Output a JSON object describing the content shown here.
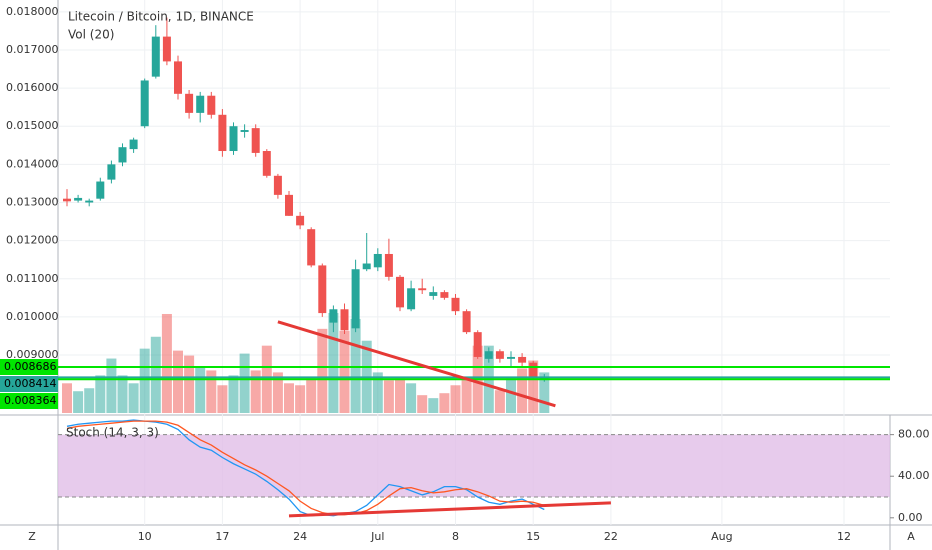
{
  "chart_data": {
    "type": "candlestick",
    "title": "Litecoin / Bitcoin, 1D, BINANCE",
    "volume_title": "Vol (20)",
    "stoch_title": "Stoch (14, 3, 3)",
    "ui": {
      "left_button": "Z",
      "right_button": "A"
    },
    "up_color": "#26a69a",
    "down_color": "#ef5350",
    "categories": [
      null,
      null,
      null,
      null,
      null,
      null,
      null,
      "10",
      null,
      null,
      null,
      null,
      null,
      null,
      "17",
      null,
      null,
      null,
      null,
      null,
      null,
      "24",
      null,
      null,
      null,
      null,
      null,
      null,
      "Jul",
      null,
      null,
      null,
      null,
      null,
      null,
      "8",
      null,
      null,
      null,
      null,
      null,
      null,
      "15",
      null,
      null,
      null,
      null,
      null,
      null,
      "22",
      null,
      null,
      null,
      null,
      null,
      null,
      null,
      null,
      null,
      "Aug",
      null,
      null,
      null,
      null,
      null,
      null,
      null,
      null,
      null,
      null,
      "12",
      null,
      null,
      null,
      null
    ],
    "open": [
      0.0131,
      0.01305,
      0.013,
      0.0131,
      0.0136,
      0.01405,
      0.0144,
      0.015,
      0.0163,
      0.01735,
      0.0167,
      0.01585,
      0.01535,
      0.0158,
      0.0153,
      0.01435,
      0.01485,
      0.01495,
      0.01435,
      0.0137,
      0.0132,
      0.01265,
      0.0123,
      0.01135,
      0.00985,
      0.0102,
      0.0097,
      0.01125,
      0.0113,
      0.01165,
      0.01105,
      0.0102,
      0.01075,
      0.01055,
      0.01065,
      0.0105,
      0.01015,
      0.0096,
      0.0089,
      0.0091,
      0.0089,
      0.00895,
      0.0088,
      0.00838,
      null,
      null,
      null,
      null,
      null,
      null,
      null,
      null,
      null,
      null,
      null,
      null,
      null,
      null,
      null,
      null,
      null,
      null,
      null,
      null,
      null,
      null,
      null,
      null,
      null,
      null,
      null,
      null,
      null,
      null,
      null
    ],
    "high": [
      0.01335,
      0.0132,
      0.0131,
      0.01365,
      0.0141,
      0.01455,
      0.0147,
      0.01625,
      0.01765,
      0.01785,
      0.01685,
      0.01595,
      0.0159,
      0.0159,
      0.01545,
      0.0151,
      0.01505,
      0.01505,
      0.0144,
      0.01375,
      0.0133,
      0.01275,
      0.01235,
      0.0114,
      0.0103,
      0.01035,
      0.0115,
      0.0122,
      0.0118,
      0.01205,
      0.0111,
      0.01095,
      0.011,
      0.0108,
      0.0107,
      0.0106,
      0.0102,
      0.00965,
      0.0092,
      0.00915,
      0.0091,
      0.00905,
      0.00885,
      0.0085,
      null,
      null,
      null,
      null,
      null,
      null,
      null,
      null,
      null,
      null,
      null,
      null,
      null,
      null,
      null,
      null,
      null,
      null,
      null,
      null,
      null,
      null,
      null,
      null,
      null,
      null,
      null,
      null,
      null,
      null,
      null
    ],
    "low": [
      0.0129,
      0.013,
      0.0129,
      0.01305,
      0.0135,
      0.01395,
      0.0143,
      0.01495,
      0.01625,
      0.0166,
      0.0157,
      0.0152,
      0.0151,
      0.0152,
      0.0142,
      0.01425,
      0.0147,
      0.0142,
      0.01365,
      0.0131,
      0.01265,
      0.0123,
      0.0113,
      0.01,
      0.0096,
      0.00955,
      0.0096,
      0.0112,
      0.0112,
      0.01095,
      0.01015,
      0.01015,
      0.0106,
      0.01045,
      0.01045,
      0.01005,
      0.00955,
      0.0089,
      0.0088,
      0.0088,
      0.0087,
      0.0087,
      0.00835,
      0.0083,
      null,
      null,
      null,
      null,
      null,
      null,
      null,
      null,
      null,
      null,
      null,
      null,
      null,
      null,
      null,
      null,
      null,
      null,
      null,
      null,
      null,
      null,
      null,
      null,
      null,
      null,
      null,
      null,
      null,
      null,
      null
    ],
    "close": [
      0.01303,
      0.01312,
      0.01305,
      0.01355,
      0.014,
      0.01445,
      0.01465,
      0.0162,
      0.01735,
      0.0167,
      0.01585,
      0.01535,
      0.0158,
      0.0153,
      0.01435,
      0.015,
      0.0149,
      0.0143,
      0.0137,
      0.0132,
      0.01265,
      0.0124,
      0.01135,
      0.0101,
      0.0102,
      0.00965,
      0.01125,
      0.0114,
      0.01165,
      0.01105,
      0.01025,
      0.01075,
      0.0107,
      0.01065,
      0.0105,
      0.01015,
      0.0096,
      0.00895,
      0.0091,
      0.0089,
      0.00895,
      0.0088,
      0.0084,
      0.008414,
      null,
      null,
      null,
      null,
      null,
      null,
      null,
      null,
      null,
      null,
      null,
      null,
      null,
      null,
      null,
      null,
      null,
      null,
      null,
      null,
      null,
      null,
      null,
      null,
      null,
      null,
      null,
      null,
      null,
      null,
      null
    ],
    "volume": [
      30,
      22,
      25,
      38,
      55,
      38,
      30,
      65,
      77,
      100,
      63,
      58,
      46,
      43,
      28,
      38,
      60,
      43,
      68,
      41,
      30,
      28,
      35,
      85,
      101,
      83,
      95,
      73,
      41,
      33,
      35,
      30,
      18,
      15,
      20,
      28,
      35,
      68,
      68,
      23,
      35,
      45,
      53,
      41,
      null,
      null,
      null,
      null,
      null,
      null,
      null,
      null,
      null,
      null,
      null,
      null,
      null,
      null,
      null,
      null,
      null,
      null,
      null,
      null,
      null,
      null,
      null,
      null,
      null,
      null,
      null,
      null,
      null,
      null,
      null
    ],
    "ylim": [
      0.00748,
      0.01831
    ],
    "yticks": [
      {
        "value": 0.009,
        "label": "0.009000"
      },
      {
        "value": 0.01,
        "label": "0.010000"
      },
      {
        "value": 0.011,
        "label": "0.011000"
      },
      {
        "value": 0.012,
        "label": "0.012000"
      },
      {
        "value": 0.013,
        "label": "0.013000"
      },
      {
        "value": 0.014,
        "label": "0.014000"
      },
      {
        "value": 0.015,
        "label": "0.015000"
      },
      {
        "value": 0.016,
        "label": "0.016000"
      },
      {
        "value": 0.017,
        "label": "0.017000"
      },
      {
        "value": 0.018,
        "label": "0.018000"
      }
    ],
    "price_markers": [
      {
        "value": 0.008686,
        "label": "0.008686",
        "color": "#00e600"
      },
      {
        "value": 0.008414,
        "label": "0.008414",
        "color": "#26a69a"
      },
      {
        "value": 0.008364,
        "label": "0.008364",
        "color": "#00e600"
      }
    ],
    "trendlines": [
      {
        "panel": "price",
        "from": [
          19,
          0.00987
        ],
        "to": [
          44,
          0.00767
        ],
        "color": "#e53935"
      },
      {
        "panel": "stoch",
        "from": [
          20,
          1.9
        ],
        "to": [
          49,
          14.4
        ],
        "color": "#e53935"
      }
    ],
    "stoch": {
      "ylim": [
        -5,
        96
      ],
      "bands": [
        20,
        80
      ],
      "band_fill": "#e1bee7",
      "yticks": [
        {
          "value": 0,
          "label": "0.00"
        },
        {
          "value": 40,
          "label": "40.00"
        },
        {
          "value": 80,
          "label": "80.00"
        }
      ],
      "series": [
        {
          "color": "#2196f3",
          "values": [
            88,
            90,
            91,
            92,
            93,
            93,
            94,
            93,
            92,
            90,
            85,
            75,
            68,
            65,
            58,
            52,
            47,
            42,
            35,
            27,
            18,
            6,
            2,
            3,
            2,
            4,
            6,
            12,
            22,
            32,
            30,
            26,
            22,
            25,
            30,
            30,
            27,
            20,
            15,
            13,
            16,
            18,
            13,
            8,
            null,
            null,
            null,
            null,
            null,
            null,
            null,
            null,
            null,
            null,
            null,
            null,
            null,
            null,
            null,
            null,
            null,
            null,
            null,
            null,
            null,
            null,
            null,
            null,
            null,
            null,
            null,
            null,
            null,
            null,
            null
          ]
        },
        {
          "color": "#ff5722",
          "values": [
            86,
            88,
            89,
            90,
            91,
            92,
            93,
            93,
            93,
            92,
            89,
            82,
            75,
            70,
            63,
            57,
            51,
            46,
            40,
            33,
            26,
            16,
            9,
            5,
            3,
            3,
            4,
            7,
            13,
            21,
            28,
            29,
            26,
            24,
            25,
            27,
            28,
            25,
            21,
            16,
            15,
            16,
            15,
            12,
            null,
            null,
            null,
            null,
            null,
            null,
            null,
            null,
            null,
            null,
            null,
            null,
            null,
            null,
            null,
            null,
            null,
            null,
            null,
            null,
            null,
            null,
            null,
            null,
            null,
            null,
            null,
            null,
            null,
            null,
            null
          ]
        }
      ]
    }
  }
}
